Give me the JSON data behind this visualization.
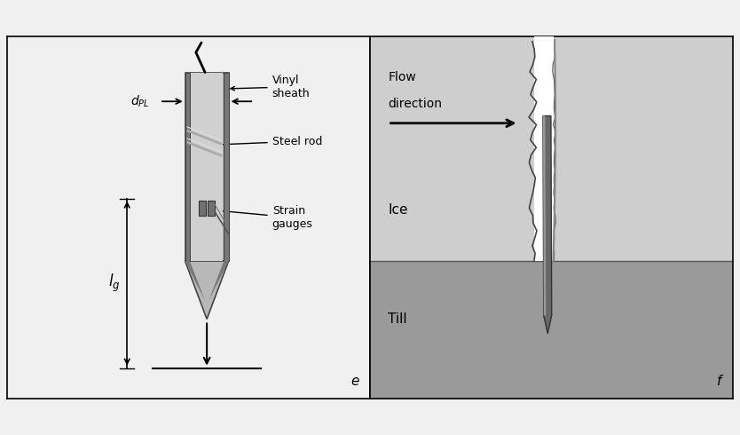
{
  "bg_color": "#f0f0f0",
  "panel_e_bg": "#f0f0f0",
  "panel_f_ice_color": "#cecece",
  "panel_f_till_color": "#9a9a9a",
  "label_e": "e",
  "label_f": "f",
  "text_vinyl": "Vinyl\nsheath",
  "text_steel": "Steel rod",
  "text_strain": "Strain\ngauges",
  "text_dpl": "$d_{PL}$",
  "text_lg": "$l_g$",
  "text_flow": "Flow\ndirection",
  "text_ice": "Ice",
  "text_till": "Till",
  "sheath_color": "#b8b8b8",
  "sheath_edge_color": "#555555",
  "rail_color": "#888888",
  "inner_color": "#c8c8c8",
  "tip_color": "#b0b0b0",
  "rod_panel_f_color": "#666666",
  "rod_panel_f_edge": "#333333"
}
